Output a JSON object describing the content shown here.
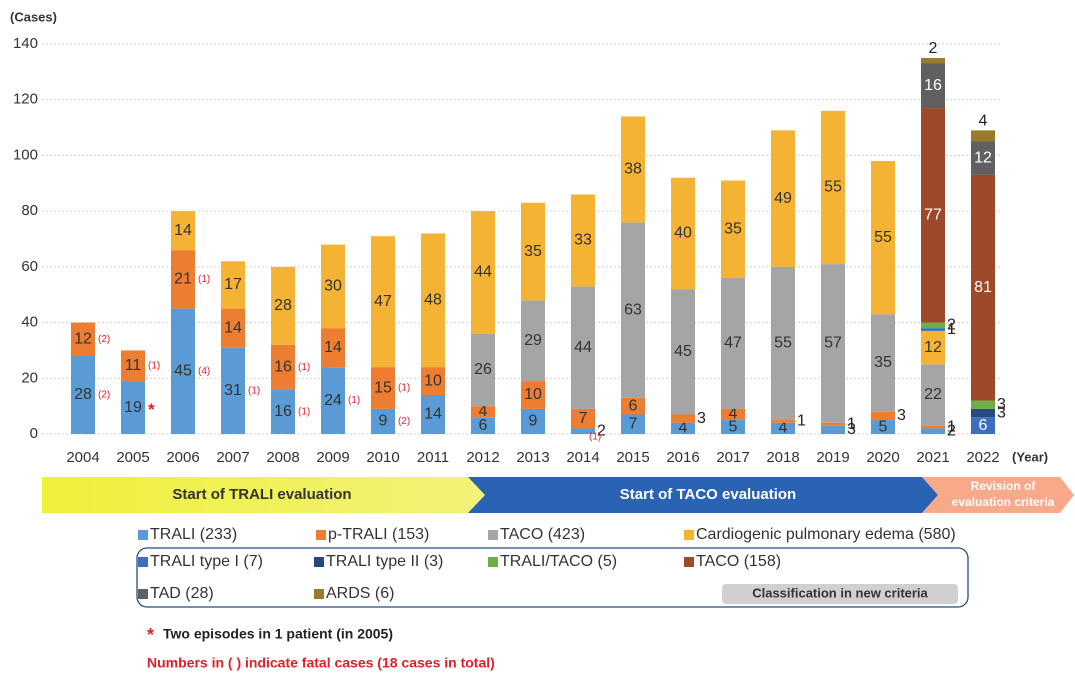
{
  "chart_data": {
    "type": "bar",
    "stacked": true,
    "ylabel": "(Cases)",
    "xlabel": "(Year)",
    "categories": [
      "2004",
      "2005",
      "2006",
      "2007",
      "2008",
      "2009",
      "2010",
      "2011",
      "2012",
      "2013",
      "2014",
      "2015",
      "2016",
      "2017",
      "2018",
      "2019",
      "2020",
      "2021",
      "2022"
    ],
    "ylim": [
      0,
      140
    ],
    "yticks": [
      0,
      20,
      40,
      60,
      80,
      100,
      120,
      140
    ],
    "grid": true,
    "series": [
      {
        "name": "TRALI (233)",
        "color": "#5b9bd5",
        "values": [
          28,
          19,
          45,
          31,
          16,
          24,
          9,
          14,
          6,
          9,
          2,
          7,
          4,
          5,
          4,
          3,
          5,
          2,
          null
        ],
        "fatal_labels": [
          "(2)",
          "*",
          "(4)",
          "(1)",
          "(1)",
          "(1)",
          "(2)",
          null,
          null,
          null,
          "(1)",
          null,
          null,
          null,
          null,
          null,
          null,
          null,
          null
        ]
      },
      {
        "name": "p-TRALI (153)",
        "color": "#ed7d31",
        "values": [
          12,
          11,
          21,
          14,
          16,
          14,
          15,
          10,
          4,
          10,
          7,
          6,
          3,
          4,
          1,
          1,
          3,
          1,
          null
        ],
        "fatal_labels": [
          "(2)",
          "(1)",
          "(1)",
          null,
          "(1)",
          null,
          "(1)",
          null,
          null,
          null,
          null,
          null,
          null,
          null,
          null,
          null,
          null,
          null,
          null
        ]
      },
      {
        "name": "TACO (423)",
        "color": "#a5a5a5",
        "values": [
          null,
          null,
          null,
          null,
          null,
          null,
          null,
          null,
          26,
          29,
          44,
          63,
          45,
          47,
          55,
          57,
          35,
          22,
          null
        ]
      },
      {
        "name": "Cardiogenic pulmonary edema (580)",
        "color": "#f5b335",
        "values": [
          null,
          null,
          14,
          17,
          28,
          30,
          47,
          48,
          44,
          35,
          33,
          38,
          40,
          35,
          49,
          55,
          55,
          12,
          null
        ]
      },
      {
        "name": "TRALI type I (7)",
        "color": "#3a6fc0",
        "values": [
          null,
          null,
          null,
          null,
          null,
          null,
          null,
          null,
          null,
          null,
          null,
          null,
          null,
          null,
          null,
          null,
          null,
          1,
          6
        ]
      },
      {
        "name": "TRALI type II (3)",
        "color": "#264a7e",
        "values": [
          null,
          null,
          null,
          null,
          null,
          null,
          null,
          null,
          null,
          null,
          null,
          null,
          null,
          null,
          null,
          null,
          null,
          null,
          3
        ]
      },
      {
        "name": "TRALI/TACO (5)",
        "color": "#6fad47",
        "values": [
          null,
          null,
          null,
          null,
          null,
          null,
          null,
          null,
          null,
          null,
          null,
          null,
          null,
          null,
          null,
          null,
          null,
          2,
          3
        ]
      },
      {
        "name": "TACO (158)",
        "color": "#9c4a2a",
        "values": [
          null,
          null,
          null,
          null,
          null,
          null,
          null,
          null,
          null,
          null,
          null,
          null,
          null,
          null,
          null,
          null,
          null,
          77,
          81
        ]
      },
      {
        "name": "TAD (28)",
        "color": "#606060",
        "values": [
          null,
          null,
          null,
          null,
          null,
          null,
          null,
          null,
          null,
          null,
          null,
          null,
          null,
          null,
          null,
          null,
          null,
          16,
          12
        ]
      },
      {
        "name": "ARDS (6)",
        "color": "#9a7a2c",
        "values": [
          null,
          null,
          null,
          null,
          null,
          null,
          null,
          null,
          null,
          null,
          null,
          null,
          null,
          null,
          null,
          null,
          null,
          2,
          4
        ]
      }
    ],
    "timeline": [
      "Start of TRALI evaluation",
      "Start of TACO evaluation",
      [
        "Revision of",
        "evaluation criteria"
      ]
    ],
    "legend_note": "Classification in new criteria",
    "notes": [
      "*",
      "Two episodes in 1 patient (in 2005)",
      "Numbers in ( ) indicate fatal cases (18 cases in total)"
    ]
  }
}
